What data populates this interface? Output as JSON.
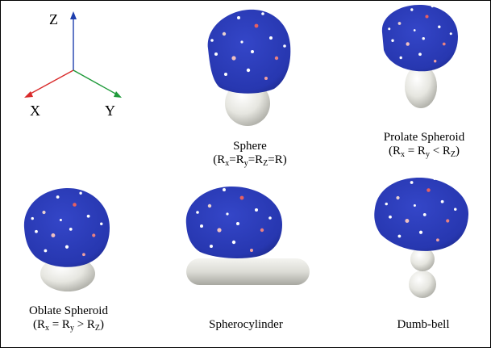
{
  "axes": {
    "z_label": "Z",
    "x_label": "X",
    "y_label": "Y",
    "colors": {
      "z": "#1f3fae",
      "x": "#d92b2b",
      "y": "#1f9a3a"
    }
  },
  "colors": {
    "vesicle": "#2a39b8",
    "particle": "#e4e4de",
    "frame": "#000000"
  },
  "panels": [
    {
      "name": "Sphere",
      "formula": {
        "parts": [
          "(R",
          "x",
          "=R",
          "y",
          "=R",
          "Z",
          "=R)"
        ]
      }
    },
    {
      "name": "Prolate Spheroid",
      "formula": {
        "parts": [
          "(R",
          "x",
          " = R",
          "y",
          " < R",
          "Z",
          ")"
        ]
      }
    },
    {
      "name": "Oblate Spheroid",
      "formula": {
        "parts": [
          "(R",
          "x",
          " = R",
          "y",
          " > R",
          "Z",
          ")"
        ]
      }
    },
    {
      "name": "Spherocylinder"
    },
    {
      "name": "Dumb-bell"
    }
  ]
}
